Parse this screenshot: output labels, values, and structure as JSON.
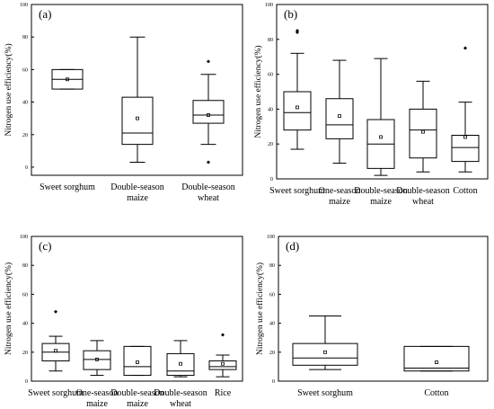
{
  "chart_data": [
    {
      "type": "box",
      "panel_label": "(a)",
      "ylabel": "Nitrogen use efficiency(%)",
      "ylim": [
        -5,
        100
      ],
      "yticks": [
        0,
        20,
        40,
        60,
        80,
        100
      ],
      "categories": [
        [
          "Sweet sorghum"
        ],
        [
          "Double-season",
          "maize"
        ],
        [
          "Double-season",
          "wheat"
        ]
      ],
      "boxes": [
        {
          "min": 48,
          "q1": 48,
          "median": 54,
          "q3": 60,
          "max": 60,
          "mean": 54,
          "outliers": []
        },
        {
          "min": 3,
          "q1": 14,
          "median": 21,
          "q3": 43,
          "max": 80,
          "mean": 30,
          "outliers": []
        },
        {
          "min": 14,
          "q1": 27,
          "median": 32,
          "q3": 41,
          "max": 57,
          "mean": 32,
          "outliers": [
            3,
            65
          ]
        }
      ]
    },
    {
      "type": "box",
      "panel_label": "(b)",
      "ylabel": "Nitrogen use efficiency(%)",
      "ylim": [
        0,
        100
      ],
      "yticks": [
        0,
        20,
        40,
        60,
        80,
        100
      ],
      "categories": [
        [
          "Sweet sorghum"
        ],
        [
          "One-season",
          "maize"
        ],
        [
          "Double-season",
          "maize"
        ],
        [
          "Double-season",
          "wheat"
        ],
        [
          "Cotton"
        ]
      ],
      "boxes": [
        {
          "min": 17,
          "q1": 28,
          "median": 38,
          "q3": 50,
          "max": 72,
          "mean": 41,
          "outliers": [
            84,
            85
          ]
        },
        {
          "min": 9,
          "q1": 23,
          "median": 31,
          "q3": 46,
          "max": 68,
          "mean": 36,
          "outliers": []
        },
        {
          "min": 2,
          "q1": 6,
          "median": 20,
          "q3": 34,
          "max": 69,
          "mean": 24,
          "outliers": []
        },
        {
          "min": 4,
          "q1": 12,
          "median": 28,
          "q3": 40,
          "max": 56,
          "mean": 27,
          "outliers": []
        },
        {
          "min": 4,
          "q1": 10,
          "median": 18,
          "q3": 25,
          "max": 44,
          "mean": 24,
          "outliers": [
            75
          ]
        }
      ]
    },
    {
      "type": "box",
      "panel_label": "(c)",
      "ylabel": "Nitrogen use efficiency(%)",
      "ylim": [
        0,
        100
      ],
      "yticks": [
        0,
        20,
        40,
        60,
        80,
        100
      ],
      "categories": [
        [
          "Sweet sorghum"
        ],
        [
          "One-season",
          "maize"
        ],
        [
          "Double-season",
          "maize"
        ],
        [
          "Double-season",
          "wheat"
        ],
        [
          "Rice"
        ]
      ],
      "boxes": [
        {
          "min": 7,
          "q1": 14,
          "median": 20,
          "q3": 26,
          "max": 31,
          "mean": 21,
          "outliers": [
            48
          ]
        },
        {
          "min": 4,
          "q1": 8,
          "median": 15,
          "q3": 21,
          "max": 28,
          "mean": 15,
          "outliers": []
        },
        {
          "min": 4,
          "q1": 4,
          "median": 10,
          "q3": 24,
          "max": 24,
          "mean": 13,
          "outliers": []
        },
        {
          "min": 3,
          "q1": 4,
          "median": 7,
          "q3": 19,
          "max": 28,
          "mean": 12,
          "outliers": []
        },
        {
          "min": 3,
          "q1": 8,
          "median": 10,
          "q3": 14,
          "max": 18,
          "mean": 12,
          "outliers": [
            32
          ]
        }
      ]
    },
    {
      "type": "box",
      "panel_label": "(d)",
      "ylabel": "Nitrogen use efficiency(%)",
      "ylim": [
        0,
        100
      ],
      "yticks": [
        0,
        20,
        40,
        60,
        80,
        100
      ],
      "categories": [
        [
          "Sweet sorghum"
        ],
        [
          "Cotton"
        ]
      ],
      "boxes": [
        {
          "min": 8,
          "q1": 11,
          "median": 16,
          "q3": 26,
          "max": 45,
          "mean": 20,
          "outliers": []
        },
        {
          "min": 7,
          "q1": 7,
          "median": 9,
          "q3": 24,
          "max": 24,
          "mean": 13,
          "outliers": []
        }
      ]
    }
  ]
}
